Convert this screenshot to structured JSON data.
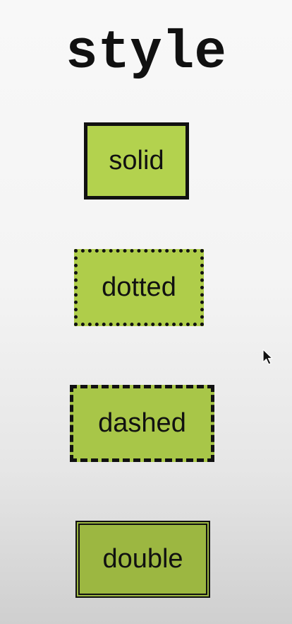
{
  "title": "style",
  "boxes": [
    {
      "label": "solid",
      "border_style": "solid",
      "fill_color": "#b3d24e"
    },
    {
      "label": "dotted",
      "border_style": "dotted",
      "fill_color": "#afcd4a"
    },
    {
      "label": "dashed",
      "border_style": "dashed",
      "fill_color": "#a8c648"
    },
    {
      "label": "double",
      "border_style": "double",
      "fill_color": "#9cb741"
    }
  ],
  "colors": {
    "border": "#111111",
    "text": "#111111"
  },
  "cursor_icon": "mouse-pointer-icon"
}
